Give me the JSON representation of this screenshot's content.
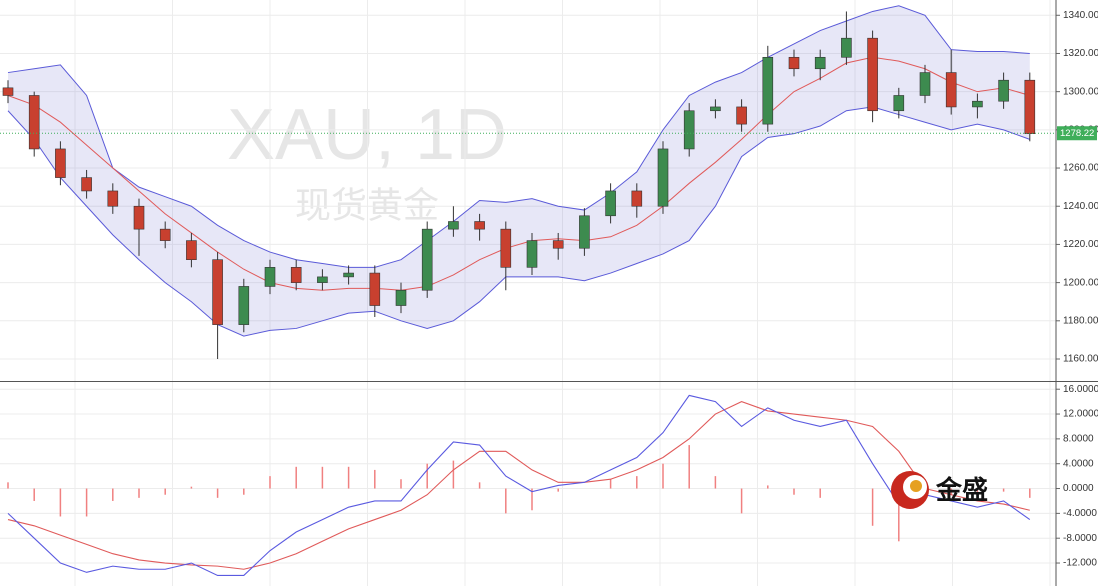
{
  "logo": "金盛",
  "chart_data": [
    {
      "type": "candlestick",
      "title": "XAU, 1D",
      "subtitle": "现货黄金",
      "open": [
        1302,
        1298,
        1270,
        1255,
        1248,
        1240,
        1228,
        1222,
        1212,
        1178,
        1198,
        1208,
        1200,
        1203,
        1205,
        1188,
        1196,
        1228,
        1232,
        1228,
        1208,
        1222,
        1218,
        1235,
        1248,
        1240,
        1270,
        1290,
        1292,
        1283,
        1318,
        1312,
        1318,
        1328,
        1290,
        1298,
        1310,
        1292,
        1295,
        1306
      ],
      "high": [
        1306,
        1300,
        1274,
        1259,
        1252,
        1244,
        1232,
        1226,
        1216,
        1202,
        1212,
        1212,
        1207,
        1209,
        1209,
        1200,
        1232,
        1240,
        1236,
        1232,
        1226,
        1226,
        1239,
        1252,
        1252,
        1274,
        1294,
        1296,
        1296,
        1324,
        1322,
        1322,
        1342,
        1332,
        1302,
        1314,
        1322,
        1299,
        1310,
        1310
      ],
      "low": [
        1294,
        1266,
        1251,
        1244,
        1236,
        1214,
        1218,
        1208,
        1160,
        1174,
        1194,
        1196,
        1196,
        1199,
        1182,
        1184,
        1192,
        1224,
        1222,
        1196,
        1204,
        1212,
        1214,
        1231,
        1234,
        1236,
        1266,
        1286,
        1279,
        1279,
        1308,
        1306,
        1314,
        1284,
        1286,
        1294,
        1288,
        1286,
        1291,
        1274
      ],
      "close": [
        1298,
        1270,
        1255,
        1248,
        1240,
        1228,
        1222,
        1212,
        1178,
        1198,
        1208,
        1200,
        1203,
        1205,
        1188,
        1196,
        1228,
        1232,
        1228,
        1208,
        1222,
        1218,
        1235,
        1248,
        1240,
        1270,
        1290,
        1292,
        1283,
        1318,
        1312,
        1318,
        1328,
        1290,
        1298,
        1310,
        1292,
        1295,
        1306,
        1278
      ],
      "up_color": "#3d8b4f",
      "down_color": "#c8402f",
      "bands": {
        "upper": [
          1310,
          1312,
          1314,
          1298,
          1260,
          1250,
          1245,
          1240,
          1230,
          1222,
          1216,
          1212,
          1210,
          1208,
          1208,
          1212,
          1222,
          1232,
          1243,
          1242,
          1244,
          1240,
          1238,
          1247,
          1258,
          1280,
          1298,
          1305,
          1310,
          1318,
          1325,
          1332,
          1337,
          1342,
          1345,
          1340,
          1322,
          1321,
          1321,
          1320
        ],
        "middle": [
          1298,
          1293,
          1284,
          1272,
          1260,
          1248,
          1236,
          1226,
          1216,
          1207,
          1200,
          1197,
          1196,
          1197,
          1197,
          1196,
          1198,
          1204,
          1212,
          1218,
          1222,
          1223,
          1222,
          1224,
          1230,
          1240,
          1252,
          1263,
          1275,
          1288,
          1300,
          1307,
          1315,
          1318,
          1316,
          1312,
          1305,
          1300,
          1302,
          1298
        ],
        "lower": [
          1290,
          1275,
          1255,
          1240,
          1225,
          1212,
          1200,
          1190,
          1178,
          1172,
          1175,
          1176,
          1180,
          1184,
          1185,
          1180,
          1176,
          1180,
          1190,
          1203,
          1203,
          1203,
          1201,
          1205,
          1210,
          1215,
          1222,
          1240,
          1266,
          1276,
          1278,
          1282,
          1290,
          1292,
          1288,
          1284,
          1280,
          1283,
          1280,
          1275
        ],
        "color": "#5a5ad8",
        "middle_color": "#e05a5a",
        "fill": "rgba(120,120,210,0.18)"
      },
      "last_price": 1278.22,
      "last_price_color": "#3fae5a",
      "ylim": [
        1149,
        1348
      ],
      "yticks": [
        {
          "value": 1160,
          "label": "1160.00"
        },
        {
          "value": 1180,
          "label": "1180.00"
        },
        {
          "value": 1200,
          "label": "1200.00"
        },
        {
          "value": 1220,
          "label": "1220.00"
        },
        {
          "value": 1240,
          "label": "1240.00"
        },
        {
          "value": 1260,
          "label": "1260.00"
        },
        {
          "value": 1280,
          "label": "1280.00"
        },
        {
          "value": 1300,
          "label": "1300.00"
        },
        {
          "value": 1320,
          "label": "1320.00"
        },
        {
          "value": 1340,
          "label": "1340.00"
        }
      ],
      "grid": true
    },
    {
      "type": "macd",
      "dif": {
        "color": "#5a5ae0",
        "values": [
          -4,
          -8,
          -12,
          -13.5,
          -12.5,
          -13,
          -13,
          -12,
          -14,
          -14,
          -10,
          -7,
          -5,
          -3,
          -2,
          -2,
          3,
          7.5,
          7,
          2,
          -0.5,
          0.5,
          1,
          3,
          5,
          9,
          15,
          14,
          10,
          13,
          11,
          10,
          11,
          4,
          -2.5,
          -1,
          -2,
          -3,
          -2,
          -5
        ]
      },
      "dea": {
        "color": "#e05a5a",
        "values": [
          -5,
          -6,
          -7.5,
          -9,
          -10.5,
          -11.5,
          -12,
          -12.3,
          -12.5,
          -13,
          -12,
          -10.5,
          -8.5,
          -6.5,
          -5,
          -3.5,
          -1,
          3,
          6,
          6,
          3,
          1,
          1,
          1.5,
          3,
          5,
          8,
          12,
          14,
          12.5,
          12,
          11.5,
          11,
          10,
          6,
          0,
          -1,
          -2,
          -2.5,
          -3.5
        ]
      },
      "histogram": {
        "color": "#f08080",
        "values": [
          1,
          -2,
          -4.5,
          -4.5,
          -2,
          -1.5,
          -1,
          0.3,
          -1.5,
          -1,
          2,
          3.5,
          3.5,
          3.5,
          3,
          1.5,
          4,
          4.5,
          1,
          -4,
          -3.5,
          -0.5,
          0,
          1.5,
          2,
          4,
          7,
          2,
          -4,
          0.5,
          -1,
          -1.5,
          0,
          -6,
          -8.5,
          -1,
          -1,
          -1,
          -0.5,
          -1.5
        ]
      },
      "ylim": [
        -15.7,
        17
      ],
      "yticks": [
        {
          "value": 16,
          "label": "16.0000"
        },
        {
          "value": 12,
          "label": "12.0000"
        },
        {
          "value": 8,
          "label": "8.0000"
        },
        {
          "value": 4,
          "label": "4.0000"
        },
        {
          "value": 0,
          "label": "0.0000"
        },
        {
          "value": -4,
          "label": "-4.0000"
        },
        {
          "value": -8,
          "label": "-8.0000"
        },
        {
          "value": -12,
          "label": "-12.000"
        }
      ],
      "grid": true
    }
  ]
}
